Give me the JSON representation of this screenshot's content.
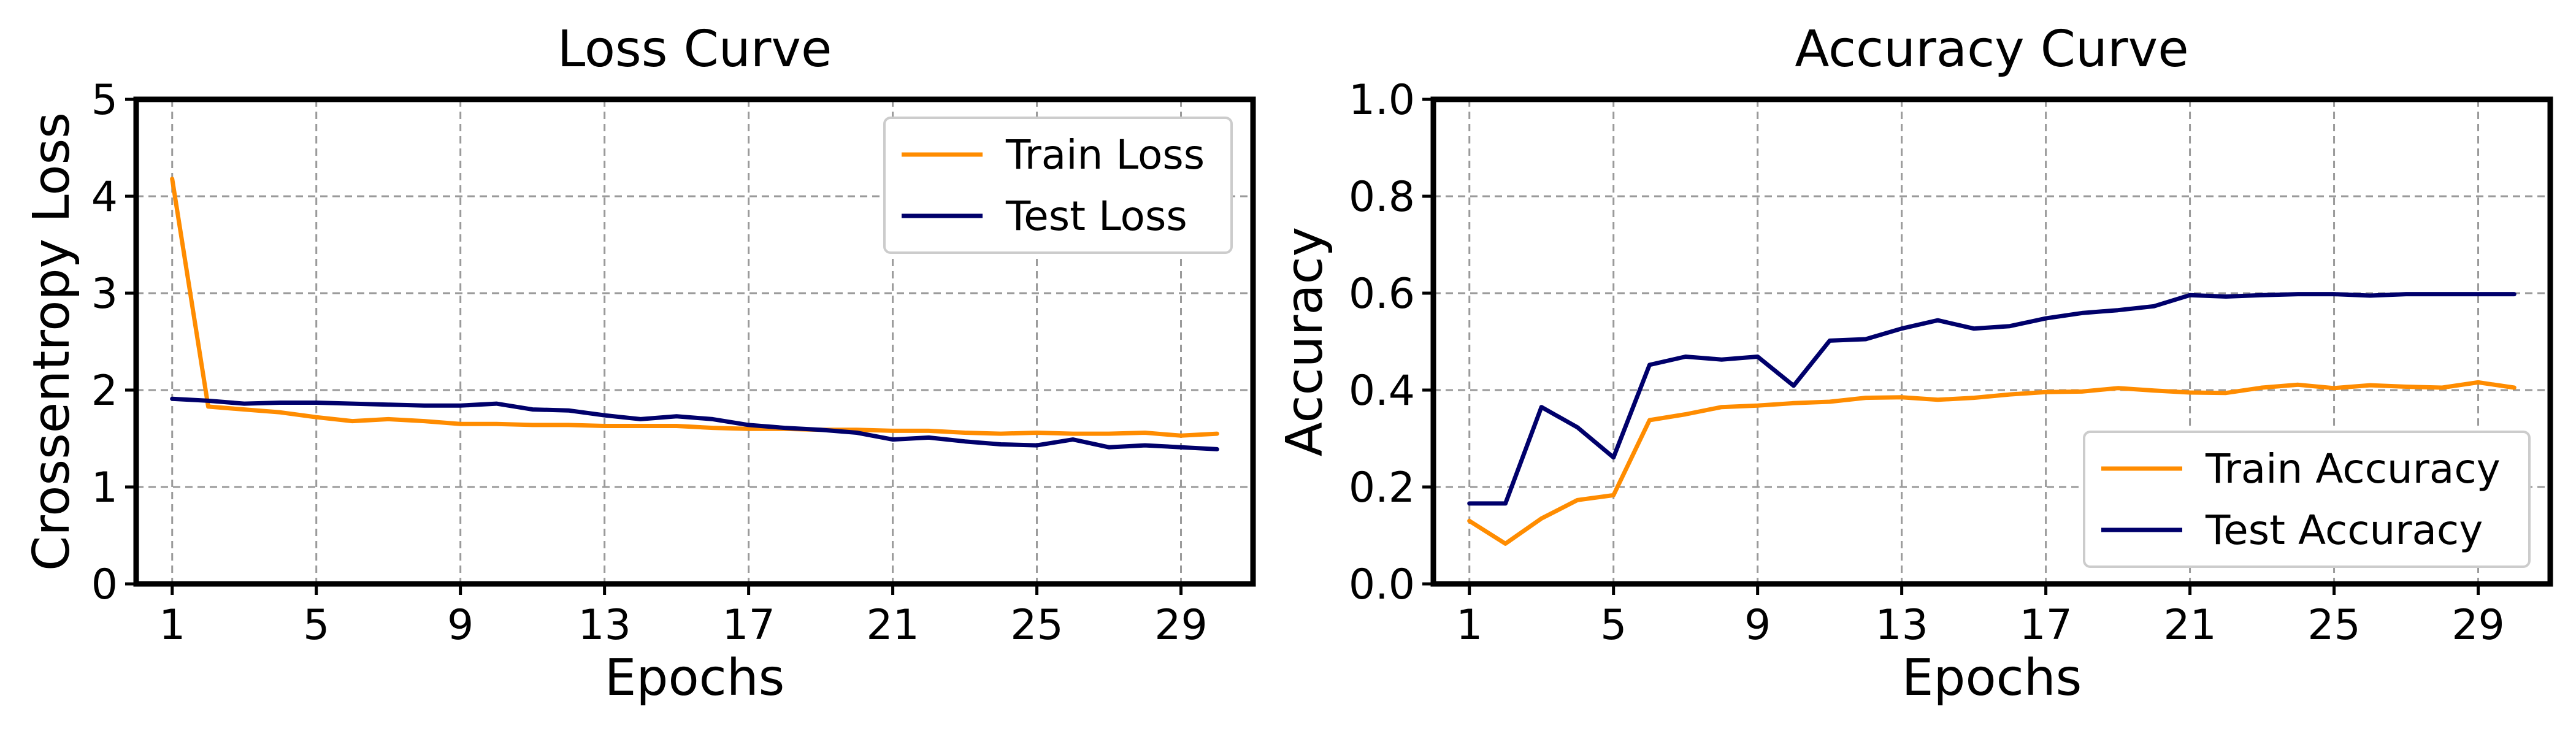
{
  "chart_data": [
    {
      "type": "line",
      "title": "Loss Curve",
      "xlabel": "Epochs",
      "ylabel": "Crossentropy Loss",
      "xlim": [
        0,
        31
      ],
      "ylim": [
        0,
        5
      ],
      "xticks": [
        1,
        5,
        9,
        13,
        17,
        21,
        25,
        29
      ],
      "yticks": [
        0,
        1,
        2,
        3,
        4,
        5
      ],
      "grid": true,
      "legend_position": "upper right",
      "x": [
        1,
        2,
        3,
        4,
        5,
        6,
        7,
        8,
        9,
        10,
        11,
        12,
        13,
        14,
        15,
        16,
        17,
        18,
        19,
        20,
        21,
        22,
        23,
        24,
        25,
        26,
        27,
        28,
        29,
        30
      ],
      "series": [
        {
          "name": "Train Loss",
          "color": "#ff8c00",
          "values": [
            4.18,
            1.83,
            1.8,
            1.77,
            1.72,
            1.68,
            1.7,
            1.68,
            1.65,
            1.65,
            1.64,
            1.64,
            1.63,
            1.63,
            1.63,
            1.61,
            1.6,
            1.6,
            1.59,
            1.59,
            1.58,
            1.58,
            1.56,
            1.55,
            1.56,
            1.55,
            1.55,
            1.56,
            1.53,
            1.55
          ]
        },
        {
          "name": "Test Loss",
          "color": "#00006b",
          "values": [
            1.91,
            1.89,
            1.86,
            1.87,
            1.87,
            1.86,
            1.85,
            1.84,
            1.84,
            1.86,
            1.8,
            1.79,
            1.74,
            1.7,
            1.73,
            1.7,
            1.64,
            1.61,
            1.59,
            1.56,
            1.49,
            1.51,
            1.47,
            1.44,
            1.43,
            1.49,
            1.41,
            1.43,
            1.41,
            1.39
          ]
        }
      ]
    },
    {
      "type": "line",
      "title": "Accuracy Curve",
      "xlabel": "Epochs",
      "ylabel": "Accuracy",
      "xlim": [
        0,
        31
      ],
      "ylim": [
        0,
        1
      ],
      "xticks": [
        1,
        5,
        9,
        13,
        17,
        21,
        25,
        29
      ],
      "yticks": [
        0.0,
        0.2,
        0.4,
        0.6,
        0.8,
        1.0
      ],
      "grid": true,
      "legend_position": "lower right",
      "x": [
        1,
        2,
        3,
        4,
        5,
        6,
        7,
        8,
        9,
        10,
        11,
        12,
        13,
        14,
        15,
        16,
        17,
        18,
        19,
        20,
        21,
        22,
        23,
        24,
        25,
        26,
        27,
        28,
        29,
        30
      ],
      "series": [
        {
          "name": "Train Accuracy",
          "color": "#ff8c00",
          "values": [
            0.13,
            0.083,
            0.135,
            0.173,
            0.183,
            0.338,
            0.35,
            0.365,
            0.368,
            0.373,
            0.376,
            0.384,
            0.385,
            0.38,
            0.384,
            0.391,
            0.396,
            0.397,
            0.404,
            0.399,
            0.395,
            0.394,
            0.405,
            0.411,
            0.404,
            0.41,
            0.407,
            0.405,
            0.416,
            0.405
          ]
        },
        {
          "name": "Test Accuracy",
          "color": "#00006b",
          "values": [
            0.166,
            0.166,
            0.365,
            0.323,
            0.261,
            0.452,
            0.469,
            0.463,
            0.469,
            0.409,
            0.502,
            0.505,
            0.527,
            0.544,
            0.527,
            0.532,
            0.548,
            0.559,
            0.565,
            0.573,
            0.596,
            0.593,
            0.596,
            0.598,
            0.598,
            0.595,
            0.598,
            0.598,
            0.598,
            0.598
          ]
        }
      ]
    }
  ]
}
